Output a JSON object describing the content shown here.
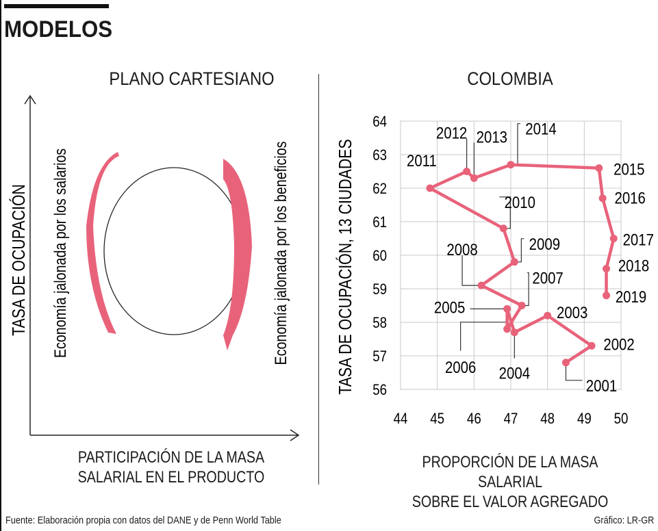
{
  "header": {
    "title": "MODELOS"
  },
  "left_panel": {
    "title": "PLANO CARTESIANO",
    "y_label": "TASA DE OCUPACIÓN",
    "x_label_line1": "PARTICIPACIÓN DE LA MASA",
    "x_label_line2": "SALARIAL EN EL PRODUCTO",
    "left_arrow_label": "Economía jalonada por los salarios",
    "right_arrow_label": "Economía jalonada por los beneficios"
  },
  "chart_data": {
    "type": "line",
    "title": "COLOMBIA",
    "xlabel_line1": "PROPORCIÓN DE LA MASA SALARIAL",
    "xlabel_line2": "SOBRE EL VALOR AGREGADO",
    "ylabel": "TASA DE OCUPACIÓN, 13 CIUDADES",
    "xlim": [
      44,
      50
    ],
    "ylim": [
      56,
      64
    ],
    "xticks": [
      44,
      45,
      46,
      47,
      48,
      49,
      50
    ],
    "yticks": [
      56,
      57,
      58,
      59,
      60,
      61,
      62,
      63,
      64
    ],
    "grid": true,
    "series_color": "#e8637a",
    "points": [
      {
        "label": "2001",
        "x": 48.5,
        "y": 56.8
      },
      {
        "label": "2002",
        "x": 49.2,
        "y": 57.3
      },
      {
        "label": "2003",
        "x": 48.0,
        "y": 58.2
      },
      {
        "label": "2004",
        "x": 47.1,
        "y": 57.7
      },
      {
        "label": "2005",
        "x": 46.9,
        "y": 58.4
      },
      {
        "label": "2006",
        "x": 46.9,
        "y": 57.8
      },
      {
        "label": "2007",
        "x": 47.3,
        "y": 58.5
      },
      {
        "label": "2008",
        "x": 46.2,
        "y": 59.1
      },
      {
        "label": "2009",
        "x": 47.1,
        "y": 59.8
      },
      {
        "label": "2010",
        "x": 46.8,
        "y": 60.8
      },
      {
        "label": "2011",
        "x": 44.8,
        "y": 62.0
      },
      {
        "label": "2012",
        "x": 45.8,
        "y": 62.5
      },
      {
        "label": "2013",
        "x": 46.0,
        "y": 62.3
      },
      {
        "label": "2014",
        "x": 47.0,
        "y": 62.7
      },
      {
        "label": "2015",
        "x": 49.4,
        "y": 62.6
      },
      {
        "label": "2016",
        "x": 49.5,
        "y": 61.7
      },
      {
        "label": "2017",
        "x": 49.8,
        "y": 60.5
      },
      {
        "label": "2018",
        "x": 49.6,
        "y": 59.6
      },
      {
        "label": "2019",
        "x": 49.6,
        "y": 58.8
      }
    ]
  },
  "footer": {
    "source": "Fuente: Elaboración propia con datos del DANE y de Penn World Table",
    "credit": "Gráfico: LR-GR"
  }
}
